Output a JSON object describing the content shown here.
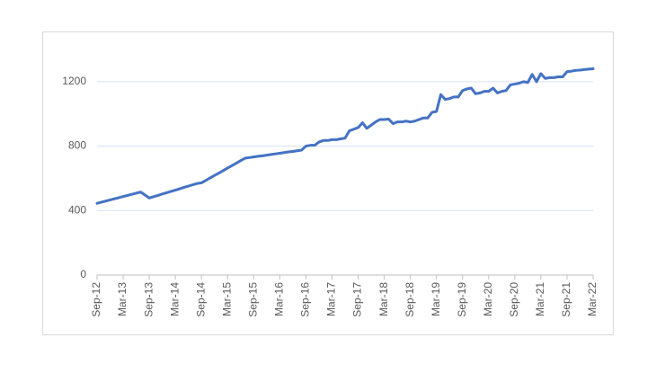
{
  "chart_data": {
    "type": "line",
    "categories": [
      "Sep-12",
      null,
      null,
      null,
      null,
      null,
      "Mar-13",
      null,
      null,
      null,
      null,
      null,
      "Sep-13",
      null,
      null,
      null,
      null,
      null,
      "Mar-14",
      null,
      null,
      null,
      null,
      null,
      "Sep-14",
      null,
      null,
      null,
      null,
      null,
      "Mar-15",
      null,
      null,
      null,
      null,
      null,
      "Sep-15",
      null,
      null,
      null,
      null,
      null,
      "Mar-16",
      null,
      null,
      null,
      null,
      null,
      "Sep-16",
      null,
      null,
      null,
      null,
      null,
      "Mar-17",
      null,
      null,
      null,
      null,
      null,
      "Sep-17",
      null,
      null,
      null,
      null,
      null,
      "Mar-18",
      null,
      null,
      null,
      null,
      null,
      "Sep-18",
      null,
      null,
      null,
      null,
      null,
      "Mar-19",
      null,
      null,
      null,
      null,
      null,
      "Sep-19",
      null,
      null,
      null,
      null,
      null,
      "Mar-20",
      null,
      null,
      null,
      null,
      null,
      "Sep-20",
      null,
      null,
      null,
      null,
      null,
      "Mar-21",
      null,
      null,
      null,
      null,
      null,
      "Sep-21",
      null,
      null,
      null,
      null,
      null,
      "Mar-22"
    ],
    "values": [
      445,
      452,
      459,
      466,
      473,
      480,
      487,
      494,
      501,
      508,
      515,
      497,
      478,
      486,
      494,
      503,
      511,
      519,
      527,
      535,
      544,
      552,
      560,
      568,
      572,
      587,
      603,
      618,
      633,
      648,
      664,
      679,
      694,
      710,
      725,
      729,
      733,
      737,
      740,
      744,
      748,
      752,
      756,
      760,
      764,
      767,
      771,
      775,
      800,
      805,
      805,
      825,
      835,
      835,
      840,
      840,
      845,
      850,
      895,
      905,
      915,
      945,
      910,
      930,
      950,
      965,
      965,
      968,
      940,
      950,
      950,
      955,
      950,
      955,
      965,
      975,
      975,
      1010,
      1015,
      1120,
      1090,
      1095,
      1105,
      1105,
      1145,
      1155,
      1160,
      1125,
      1130,
      1140,
      1140,
      1160,
      1130,
      1140,
      1145,
      1180,
      1185,
      1190,
      1200,
      1195,
      1245,
      1200,
      1250,
      1220,
      1225,
      1225,
      1230,
      1230,
      1262,
      1265,
      1270,
      1272,
      1275,
      1278,
      1280
    ],
    "color": "#4472c4",
    "ylim": [
      0,
      1400
    ],
    "yticks": [
      0,
      400,
      800,
      1200
    ],
    "grid": true
  }
}
